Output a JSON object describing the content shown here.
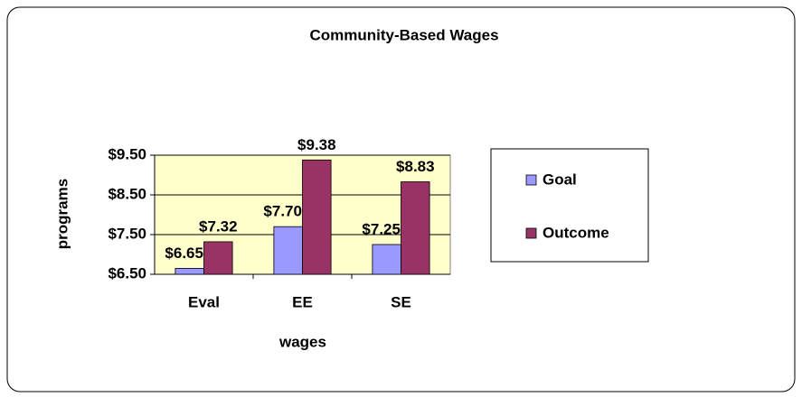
{
  "chart_data": {
    "type": "bar",
    "title": "Community-Based Wages",
    "x_label": "wages",
    "y_label": "programs",
    "categories": [
      "Eval",
      "EE",
      "SE"
    ],
    "series": [
      {
        "name": "Goal",
        "color": "#9999ff",
        "values": [
          6.65,
          7.7,
          7.25
        ],
        "value_labels": [
          "$6.65",
          "$7.70",
          "$7.25"
        ]
      },
      {
        "name": "Outcome",
        "color": "#993366",
        "values": [
          7.32,
          9.38,
          8.83
        ],
        "value_labels": [
          "$7.32",
          "$9.38",
          "$8.83"
        ]
      }
    ],
    "ylim": [
      6.5,
      9.5
    ],
    "yticks": [
      {
        "value": 6.5,
        "label": "$6.50"
      },
      {
        "value": 7.5,
        "label": "$7.50"
      },
      {
        "value": 8.5,
        "label": "$8.50"
      },
      {
        "value": 9.5,
        "label": "$9.50"
      }
    ],
    "grid": true,
    "legend": "right"
  }
}
